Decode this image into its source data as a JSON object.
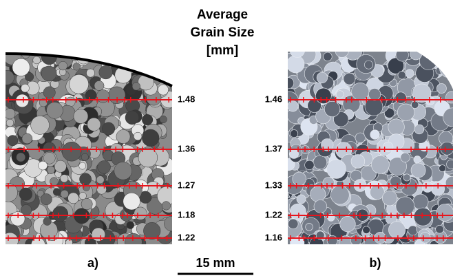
{
  "header": {
    "title_lines": [
      "Average",
      "Grain Size",
      "[mm]"
    ]
  },
  "panels": [
    {
      "label": "a)",
      "values": [
        "1.48",
        "1.36",
        "1.27",
        "1.18",
        "1.22"
      ]
    },
    {
      "label": "b)",
      "values": [
        "1.46",
        "1.37",
        "1.33",
        "1.22",
        "1.16"
      ]
    }
  ],
  "scale_bar": {
    "label": "15 mm"
  }
}
